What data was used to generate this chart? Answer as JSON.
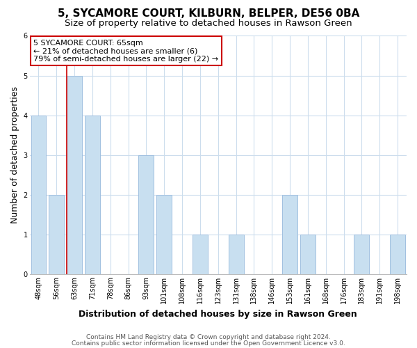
{
  "title": "5, SYCAMORE COURT, KILBURN, BELPER, DE56 0BA",
  "subtitle": "Size of property relative to detached houses in Rawson Green",
  "xlabel": "Distribution of detached houses by size in Rawson Green",
  "ylabel": "Number of detached properties",
  "categories": [
    "48sqm",
    "56sqm",
    "63sqm",
    "71sqm",
    "78sqm",
    "86sqm",
    "93sqm",
    "101sqm",
    "108sqm",
    "116sqm",
    "123sqm",
    "131sqm",
    "138sqm",
    "146sqm",
    "153sqm",
    "161sqm",
    "168sqm",
    "176sqm",
    "183sqm",
    "191sqm",
    "198sqm"
  ],
  "values": [
    4,
    2,
    5,
    4,
    0,
    0,
    3,
    2,
    0,
    1,
    0,
    1,
    0,
    0,
    2,
    1,
    0,
    0,
    1,
    0,
    1
  ],
  "bar_color": "#c8dff0",
  "bar_edgecolor": "#a0c0e0",
  "highlight_index": 2,
  "highlight_line_color": "#cc0000",
  "annotation_line1": "5 SYCAMORE COURT: 65sqm",
  "annotation_line2": "← 21% of detached houses are smaller (6)",
  "annotation_line3": "79% of semi-detached houses are larger (22) →",
  "annotation_box_edgecolor": "#cc0000",
  "ylim": [
    0,
    6
  ],
  "yticks": [
    0,
    1,
    2,
    3,
    4,
    5,
    6
  ],
  "footer_line1": "Contains HM Land Registry data © Crown copyright and database right 2024.",
  "footer_line2": "Contains public sector information licensed under the Open Government Licence v3.0.",
  "background_color": "#ffffff",
  "grid_color": "#ccdded",
  "title_fontsize": 11,
  "subtitle_fontsize": 9.5,
  "axis_label_fontsize": 9,
  "tick_fontsize": 7,
  "annotation_fontsize": 8,
  "footer_fontsize": 6.5
}
